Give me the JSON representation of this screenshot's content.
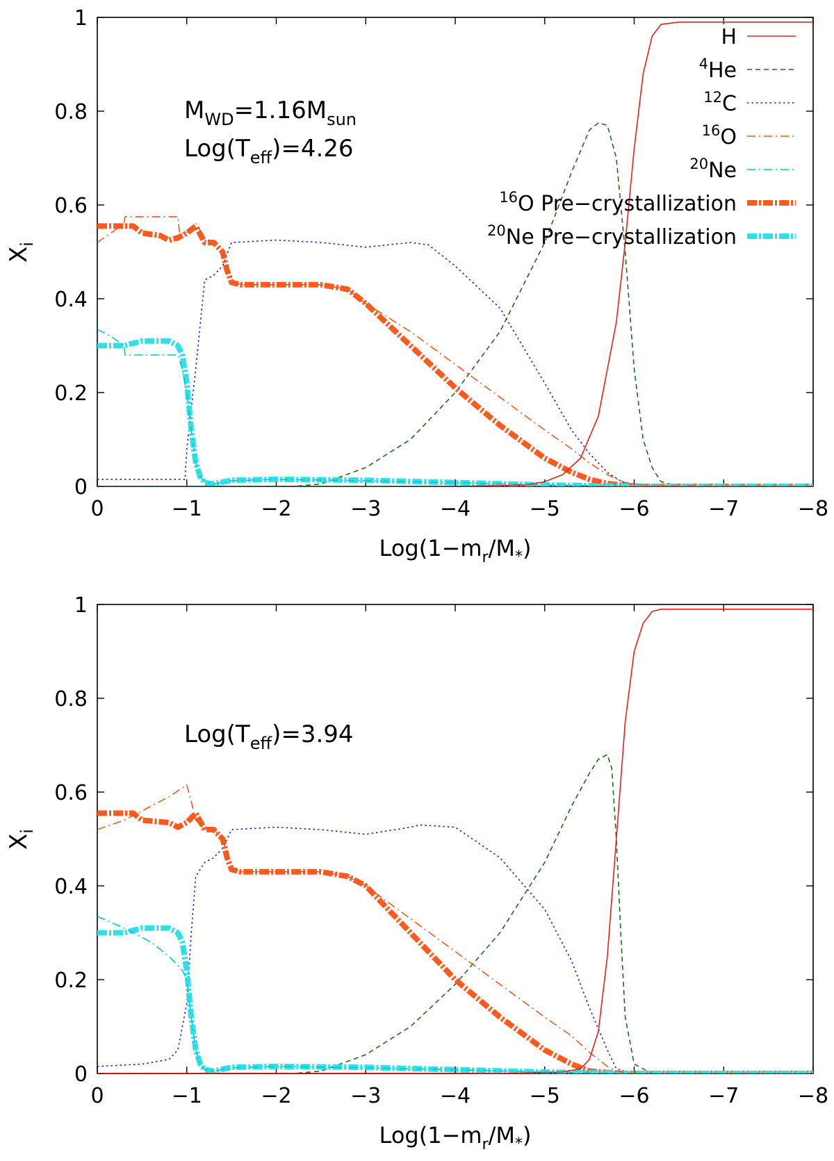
{
  "chart_data": [
    {
      "type": "line",
      "panel": "top",
      "xlabel": "Log(1−m_r/M_*)",
      "ylabel": "X_i",
      "xlim": [
        0,
        -8
      ],
      "ylim": [
        0,
        1
      ],
      "xticks": [
        0,
        -1,
        -2,
        -3,
        -4,
        -5,
        -6,
        -7,
        -8
      ],
      "yticks": [
        0,
        0.2,
        0.4,
        0.6,
        0.8,
        1
      ],
      "legend_position": "top-right",
      "annotations": [
        {
          "id": "mass",
          "prefix": "M",
          "sub": "WD",
          "mid": "=1.16M",
          "sub2": "sun"
        },
        {
          "id": "teff",
          "prefix": "Log(T",
          "sub": "eff",
          "mid": ")=4.26",
          "sub2": ""
        }
      ],
      "series": [
        {
          "key": "H",
          "name": "H",
          "sup": "",
          "color": "#e8201e",
          "style": "solid",
          "x": [
            0,
            -4,
            -4.8,
            -5,
            -5.2,
            -5.4,
            -5.6,
            -5.8,
            -5.9,
            -6,
            -6.1,
            -6.2,
            -6.3,
            -6.5,
            -8
          ],
          "y": [
            0,
            0,
            0.003,
            0.01,
            0.025,
            0.06,
            0.15,
            0.35,
            0.52,
            0.72,
            0.88,
            0.96,
            0.985,
            0.99,
            0.99
          ]
        },
        {
          "key": "He",
          "name": "He",
          "sup": "4",
          "color": "#1a6b1a",
          "style": "dash",
          "x": [
            0,
            -2.2,
            -2.5,
            -3,
            -3.5,
            -4,
            -4.5,
            -5,
            -5.3,
            -5.5,
            -5.6,
            -5.7,
            -5.8,
            -5.9,
            -6,
            -6.1,
            -6.2,
            -6.3,
            -6.5,
            -8
          ],
          "y": [
            0,
            0,
            0.005,
            0.04,
            0.1,
            0.2,
            0.33,
            0.52,
            0.67,
            0.76,
            0.775,
            0.77,
            0.7,
            0.5,
            0.25,
            0.1,
            0.04,
            0.01,
            0,
            0
          ]
        },
        {
          "key": "C12",
          "name": "C",
          "sup": "12",
          "color": "#1a1ae8",
          "style": "dot",
          "x": [
            0,
            -0.98,
            -1,
            -1.1,
            -1.2,
            -1.3,
            -1.4,
            -1.5,
            -2,
            -2.5,
            -3,
            -3.5,
            -3.7,
            -4,
            -4.5,
            -5,
            -5.3,
            -5.5,
            -5.7,
            -5.9,
            -6.1,
            -8
          ],
          "y": [
            0.015,
            0.015,
            0.08,
            0.25,
            0.44,
            0.45,
            0.47,
            0.52,
            0.525,
            0.52,
            0.51,
            0.52,
            0.515,
            0.47,
            0.38,
            0.22,
            0.12,
            0.07,
            0.03,
            0.005,
            0,
            0
          ]
        },
        {
          "key": "O16",
          "name": "O",
          "sup": "16",
          "color": "#e85a1e",
          "style": "dashdot",
          "x": [
            0,
            -0.15,
            -0.3,
            -0.31,
            -0.9,
            -0.92,
            -1,
            -1.1,
            -1.2,
            -1.3,
            -1.4,
            -1.5,
            -1.6,
            -2,
            -2.5,
            -2.8,
            -3,
            -3.5,
            -4,
            -4.5,
            -5,
            -5.3,
            -5.5,
            -5.7,
            -5.9,
            -6.1,
            -8
          ],
          "y": [
            0.52,
            0.54,
            0.56,
            0.575,
            0.575,
            0.54,
            0.54,
            0.56,
            0.53,
            0.52,
            0.5,
            0.44,
            0.43,
            0.43,
            0.43,
            0.42,
            0.39,
            0.33,
            0.26,
            0.19,
            0.12,
            0.08,
            0.05,
            0.025,
            0.008,
            0.002,
            0
          ]
        },
        {
          "key": "Ne20",
          "name": "Ne",
          "sup": "20",
          "color": "#00c8c8",
          "style": "dashdot",
          "x": [
            0,
            -0.15,
            -0.3,
            -0.31,
            -0.9,
            -0.95,
            -1,
            -1.05,
            -1.1,
            -1.15,
            -1.2,
            -1.3,
            -1.5,
            -2,
            -3,
            -4,
            -5,
            -6,
            -8
          ],
          "y": [
            0.335,
            0.32,
            0.3,
            0.28,
            0.28,
            0.25,
            0.2,
            0.12,
            0.05,
            0.02,
            0.01,
            0.005,
            0.012,
            0.015,
            0.012,
            0.008,
            0.003,
            0,
            0
          ]
        },
        {
          "key": "O16pre",
          "name": "O Pre−crystallization",
          "sup": "16",
          "color": "#ff5a1e",
          "style": "thick",
          "x": [
            0,
            -0.4,
            -0.5,
            -0.7,
            -0.8,
            -0.9,
            -1,
            -1.1,
            -1.2,
            -1.3,
            -1.4,
            -1.45,
            -1.5,
            -1.6,
            -2,
            -2.5,
            -2.8,
            -3,
            -3.5,
            -4,
            -4.5,
            -5,
            -5.3,
            -5.5,
            -5.7,
            -5.9,
            -6.1,
            -8
          ],
          "y": [
            0.555,
            0.555,
            0.54,
            0.535,
            0.525,
            0.53,
            0.54,
            0.555,
            0.52,
            0.52,
            0.5,
            0.46,
            0.435,
            0.43,
            0.43,
            0.43,
            0.42,
            0.39,
            0.3,
            0.21,
            0.13,
            0.06,
            0.03,
            0.015,
            0.006,
            0.002,
            0,
            0
          ]
        },
        {
          "key": "Ne20pre",
          "name": "Ne Pre−crystallization",
          "sup": "20",
          "color": "#30e0e8",
          "style": "thick",
          "x": [
            0,
            -0.3,
            -0.5,
            -0.8,
            -0.9,
            -0.95,
            -1,
            -1.05,
            -1.1,
            -1.15,
            -1.2,
            -1.3,
            -1.5,
            -2,
            -3,
            -4,
            -5,
            -6,
            -8
          ],
          "y": [
            0.3,
            0.3,
            0.31,
            0.31,
            0.3,
            0.28,
            0.22,
            0.12,
            0.05,
            0.02,
            0.008,
            0.005,
            0.013,
            0.015,
            0.013,
            0.008,
            0.003,
            0,
            0
          ]
        }
      ]
    },
    {
      "type": "line",
      "panel": "bottom",
      "xlabel": "Log(1−m_r/M_*)",
      "ylabel": "X_i",
      "xlim": [
        0,
        -8
      ],
      "ylim": [
        0,
        1
      ],
      "xticks": [
        0,
        -1,
        -2,
        -3,
        -4,
        -5,
        -6,
        -7,
        -8
      ],
      "yticks": [
        0,
        0.2,
        0.4,
        0.6,
        0.8,
        1
      ],
      "annotations": [
        {
          "id": "teff",
          "prefix": "Log(T",
          "sub": "eff",
          "mid": ")=3.94",
          "sub2": ""
        }
      ],
      "series": [
        {
          "key": "H",
          "name": "H",
          "color": "#e8201e",
          "style": "solid",
          "x": [
            0,
            -4.5,
            -5.2,
            -5.4,
            -5.5,
            -5.6,
            -5.7,
            -5.8,
            -5.9,
            -6,
            -6.1,
            -6.2,
            -6.3,
            -6.5,
            -8
          ],
          "y": [
            0,
            0,
            0.003,
            0.01,
            0.03,
            0.09,
            0.25,
            0.5,
            0.75,
            0.9,
            0.96,
            0.985,
            0.99,
            0.99,
            0.99
          ]
        },
        {
          "key": "He",
          "name": "He",
          "color": "#1a6b1a",
          "style": "dash",
          "x": [
            0,
            -2.2,
            -2.5,
            -3,
            -3.5,
            -4,
            -4.5,
            -5,
            -5.3,
            -5.5,
            -5.6,
            -5.7,
            -5.75,
            -5.8,
            -5.85,
            -5.9,
            -6,
            -6.2,
            -8
          ],
          "y": [
            0,
            0,
            0.005,
            0.04,
            0.1,
            0.19,
            0.3,
            0.45,
            0.57,
            0.64,
            0.67,
            0.68,
            0.65,
            0.5,
            0.3,
            0.12,
            0.02,
            0,
            0
          ]
        },
        {
          "key": "C12",
          "name": "C",
          "color": "#1a1ae8",
          "style": "dot",
          "x": [
            0,
            -0.5,
            -0.8,
            -0.9,
            -1,
            -1.05,
            -1.1,
            -1.2,
            -1.3,
            -1.4,
            -1.5,
            -2,
            -2.5,
            -3,
            -3.5,
            -3.6,
            -4,
            -4.5,
            -5,
            -5.3,
            -5.5,
            -5.7,
            -5.8,
            -6,
            -8
          ],
          "y": [
            0.015,
            0.02,
            0.03,
            0.05,
            0.15,
            0.3,
            0.42,
            0.45,
            0.46,
            0.48,
            0.52,
            0.525,
            0.52,
            0.51,
            0.525,
            0.53,
            0.525,
            0.46,
            0.35,
            0.24,
            0.14,
            0.05,
            0.01,
            0,
            0
          ]
        },
        {
          "key": "O16",
          "name": "O",
          "color": "#e85a1e",
          "style": "dashdot",
          "x": [
            0,
            -0.3,
            -0.6,
            -0.8,
            -1,
            -1.05,
            -1.1,
            -1.2,
            -1.3,
            -1.4,
            -1.5,
            -1.6,
            -2,
            -2.5,
            -2.8,
            -3,
            -3.5,
            -4,
            -4.5,
            -5,
            -5.3,
            -5.5,
            -5.7,
            -5.8,
            -6,
            -8
          ],
          "y": [
            0.52,
            0.54,
            0.57,
            0.59,
            0.615,
            0.58,
            0.54,
            0.52,
            0.52,
            0.5,
            0.44,
            0.43,
            0.43,
            0.43,
            0.42,
            0.4,
            0.33,
            0.26,
            0.19,
            0.12,
            0.08,
            0.045,
            0.015,
            0.005,
            0,
            0
          ]
        },
        {
          "key": "Ne20",
          "name": "Ne",
          "color": "#00c8c8",
          "style": "dashdot",
          "x": [
            0,
            -0.3,
            -0.6,
            -0.8,
            -0.95,
            -1,
            -1.05,
            -1.1,
            -1.15,
            -1.2,
            -1.3,
            -1.5,
            -2,
            -3,
            -4,
            -5,
            -6,
            -8
          ],
          "y": [
            0.335,
            0.31,
            0.28,
            0.25,
            0.22,
            0.2,
            0.12,
            0.05,
            0.02,
            0.008,
            0.005,
            0.012,
            0.015,
            0.012,
            0.008,
            0.003,
            0,
            0
          ]
        },
        {
          "key": "O16pre",
          "name": "O Pre−crystallization",
          "color": "#ff5a1e",
          "style": "thick",
          "x": [
            0,
            -0.4,
            -0.5,
            -0.8,
            -0.9,
            -1,
            -1.1,
            -1.2,
            -1.3,
            -1.4,
            -1.45,
            -1.5,
            -1.6,
            -2,
            -2.5,
            -2.8,
            -3,
            -3.5,
            -4,
            -4.5,
            -5,
            -5.3,
            -5.5,
            -5.7,
            -5.9,
            -8
          ],
          "y": [
            0.555,
            0.555,
            0.54,
            0.535,
            0.525,
            0.535,
            0.555,
            0.52,
            0.52,
            0.5,
            0.46,
            0.435,
            0.43,
            0.43,
            0.43,
            0.42,
            0.4,
            0.3,
            0.2,
            0.12,
            0.05,
            0.02,
            0.005,
            0.002,
            0,
            0
          ]
        },
        {
          "key": "Ne20pre",
          "name": "Ne Pre−crystallization",
          "color": "#30e0e8",
          "style": "thick",
          "x": [
            0,
            -0.3,
            -0.5,
            -0.8,
            -0.9,
            -0.95,
            -1,
            -1.05,
            -1.1,
            -1.15,
            -1.2,
            -1.3,
            -1.5,
            -2,
            -3,
            -4,
            -5,
            -6,
            -8
          ],
          "y": [
            0.3,
            0.3,
            0.31,
            0.31,
            0.3,
            0.28,
            0.22,
            0.12,
            0.05,
            0.02,
            0.008,
            0.005,
            0.013,
            0.015,
            0.013,
            0.008,
            0.003,
            0,
            0
          ]
        }
      ]
    }
  ]
}
